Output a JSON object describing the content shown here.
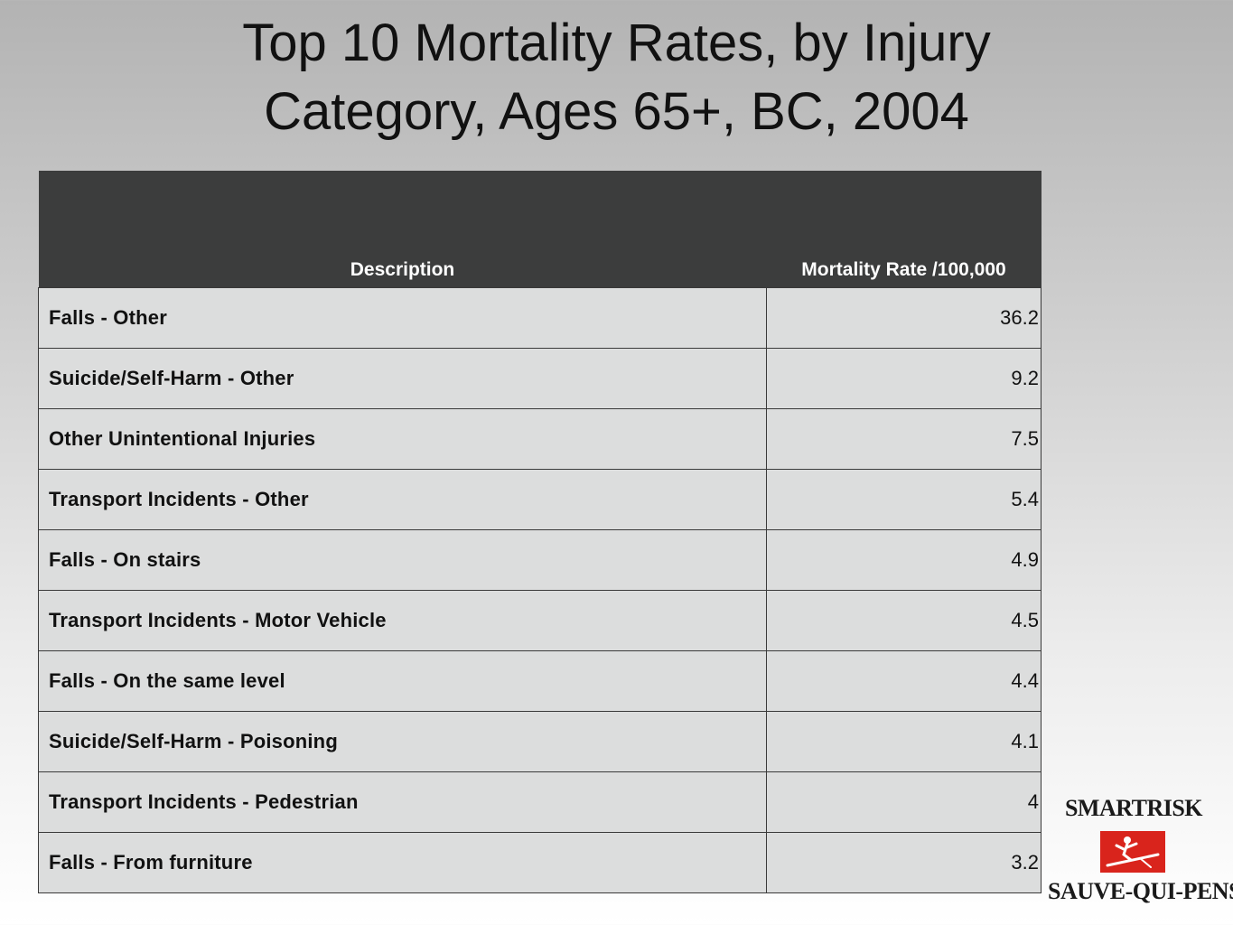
{
  "title": {
    "line1": "Top 10 Mortality Rates, by Injury",
    "line2": "Category,  Ages 65+, BC, 2004"
  },
  "table": {
    "headers": [
      "Description",
      "Mortality Rate /100,000"
    ],
    "rows": [
      [
        "Falls - Other",
        "36.2"
      ],
      [
        "Suicide/Self-Harm - Other",
        "9.2"
      ],
      [
        "Other Unintentional Injuries",
        "7.5"
      ],
      [
        "Transport Incidents - Other",
        "5.4"
      ],
      [
        "Falls - On stairs",
        "4.9"
      ],
      [
        "Transport Incidents - Motor Vehicle",
        "4.5"
      ],
      [
        "Falls - On the same level",
        "4.4"
      ],
      [
        "Suicide/Self-Harm - Poisoning",
        "4.1"
      ],
      [
        "Transport Incidents - Pedestrian",
        "4"
      ],
      [
        "Falls - From furniture",
        "3.2"
      ]
    ]
  },
  "logo": {
    "top": "SMARTRISK",
    "bottom": "SAUVE-QUI-PENSE",
    "mark_color": "#d9241c",
    "icon": "skier-icon"
  }
}
